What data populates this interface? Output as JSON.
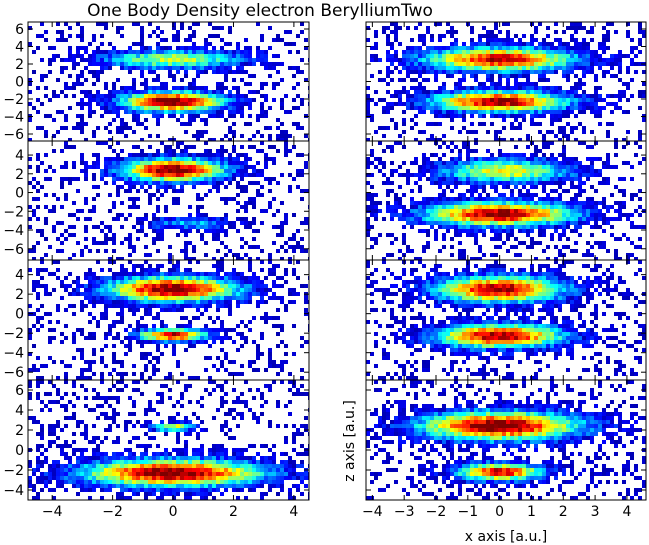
{
  "chart_data": {
    "type": "heatmap",
    "title": "One Body Density electron BerylliumTwo",
    "xlabel": "x axis [a.u.]",
    "ylabel": "z axis [a.u.]",
    "colormap": [
      "#00007f",
      "#0000ff",
      "#007fff",
      "#00ffff",
      "#7fff7f",
      "#ffff00",
      "#ff7f00",
      "#ff0000",
      "#7f0000"
    ],
    "panels": [
      {
        "name": "left-1",
        "xlim": [
          -4.8,
          4.5
        ],
        "ylim": [
          -6.8,
          6.8
        ],
        "xticks": [
          -4,
          -2,
          0,
          2,
          4
        ],
        "yticks": [
          6,
          4,
          2,
          0,
          -2,
          -4,
          -6
        ],
        "blobs": [
          {
            "x": 0.0,
            "y": 2.5,
            "rx": 3.3,
            "ry": 1.5,
            "peak": 0.55
          },
          {
            "x": 0.0,
            "y": -2.3,
            "rx": 2.4,
            "ry": 1.6,
            "peak": 1.0
          }
        ]
      },
      {
        "name": "right-1",
        "xlim": [
          -4.2,
          4.6
        ],
        "ylim": [
          -6.8,
          6.8
        ],
        "xticks": [
          -4,
          -3,
          -2,
          -1,
          0,
          1,
          2,
          3,
          4
        ],
        "yticks": [],
        "blobs": [
          {
            "x": 0.0,
            "y": 2.5,
            "rx": 3.3,
            "ry": 1.9,
            "peak": 0.9
          },
          {
            "x": 0.0,
            "y": -2.3,
            "rx": 3.0,
            "ry": 1.7,
            "peak": 0.95
          }
        ]
      },
      {
        "name": "left-2",
        "xlim": [
          -4.8,
          4.5
        ],
        "ylim": [
          -7.2,
          5.5
        ],
        "xticks": [
          -4,
          -2,
          0,
          2,
          4
        ],
        "yticks": [
          4,
          2,
          0,
          -2,
          -4,
          -6
        ],
        "blobs": [
          {
            "x": 0.0,
            "y": 2.4,
            "rx": 2.4,
            "ry": 1.7,
            "peak": 1.0
          },
          {
            "x": 0.5,
            "y": -3.3,
            "rx": 2.0,
            "ry": 0.9,
            "peak": 0.3
          }
        ]
      },
      {
        "name": "right-2",
        "xlim": [
          -4.2,
          4.6
        ],
        "ylim": [
          -7.2,
          5.5
        ],
        "xticks": [
          -4,
          -3,
          -2,
          -1,
          0,
          1,
          2,
          3,
          4
        ],
        "yticks": [],
        "blobs": [
          {
            "x": 0.2,
            "y": 2.3,
            "rx": 3.0,
            "ry": 1.8,
            "peak": 0.6
          },
          {
            "x": 0.0,
            "y": -2.3,
            "rx": 3.3,
            "ry": 1.8,
            "peak": 0.95
          }
        ]
      },
      {
        "name": "left-3",
        "xlim": [
          -4.8,
          4.5
        ],
        "ylim": [
          -6.8,
          5.5
        ],
        "xticks": [
          -4,
          -2,
          0,
          2,
          4
        ],
        "yticks": [
          4,
          2,
          0,
          -2,
          -4,
          -6
        ],
        "blobs": [
          {
            "x": 0.0,
            "y": 2.5,
            "rx": 3.0,
            "ry": 1.8,
            "peak": 1.0
          },
          {
            "x": 0.0,
            "y": -2.2,
            "rx": 1.6,
            "ry": 0.9,
            "peak": 0.9
          }
        ]
      },
      {
        "name": "right-3",
        "xlim": [
          -4.2,
          4.6
        ],
        "ylim": [
          -6.8,
          5.5
        ],
        "xticks": [
          -4,
          -3,
          -2,
          -1,
          0,
          1,
          2,
          3,
          4
        ],
        "yticks": [],
        "blobs": [
          {
            "x": 0.0,
            "y": 2.5,
            "rx": 2.8,
            "ry": 1.9,
            "peak": 0.95
          },
          {
            "x": 0.0,
            "y": -2.3,
            "rx": 2.8,
            "ry": 1.7,
            "peak": 0.95
          }
        ]
      },
      {
        "name": "left-4",
        "xlim": [
          -4.8,
          4.5
        ],
        "ylim": [
          -5.0,
          7.0
        ],
        "xticks": [
          -4,
          -2,
          0,
          2,
          4
        ],
        "yticks": [
          6,
          4,
          2,
          0,
          -2,
          -4
        ],
        "blobs": [
          {
            "x": 0.0,
            "y": 2.3,
            "rx": 1.0,
            "ry": 0.6,
            "peak": 0.6
          },
          {
            "x": 0.0,
            "y": -2.3,
            "rx": 4.2,
            "ry": 1.9,
            "peak": 1.0
          }
        ]
      },
      {
        "name": "right-4",
        "xlim": [
          -4.2,
          4.6
        ],
        "ylim": [
          -5.0,
          7.0
        ],
        "xticks": [
          -4,
          -3,
          -2,
          -1,
          0,
          1,
          2,
          3,
          4
        ],
        "yticks": [],
        "blobs": [
          {
            "x": 0.0,
            "y": 2.4,
            "rx": 3.5,
            "ry": 2.0,
            "peak": 1.0
          },
          {
            "x": 0.0,
            "y": -2.2,
            "rx": 1.9,
            "ry": 1.2,
            "peak": 0.9
          }
        ]
      }
    ]
  }
}
